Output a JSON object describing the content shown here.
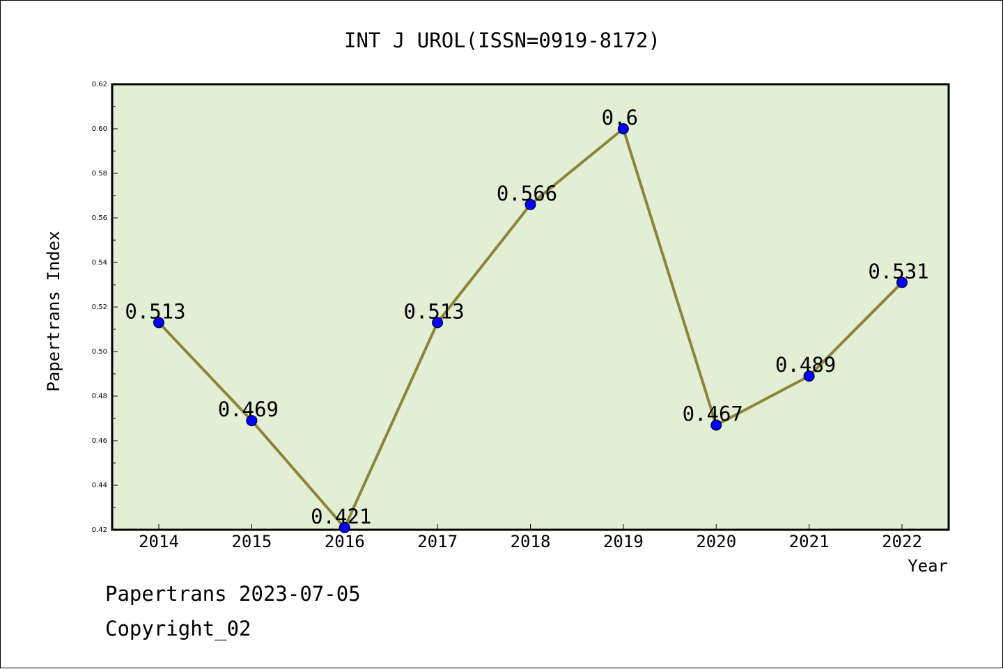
{
  "chart_data": {
    "type": "line",
    "title": "INT J UROL(ISSN=0919-8172)",
    "xlabel": "Year",
    "ylabel": "Papertrans Index",
    "categories": [
      "2014",
      "2015",
      "2016",
      "2017",
      "2018",
      "2019",
      "2020",
      "2021",
      "2022"
    ],
    "values": [
      0.513,
      0.469,
      0.421,
      0.513,
      0.566,
      0.6,
      0.467,
      0.489,
      0.531
    ],
    "data_labels": [
      "0.513",
      "0.469",
      "0.421",
      "0.513",
      "0.566",
      "0.6",
      "0.467",
      "0.489",
      "0.531"
    ],
    "ylim": [
      0.42,
      0.62
    ],
    "yticks": [
      "0.42",
      "0.44",
      "0.46",
      "0.48",
      "0.50",
      "0.52",
      "0.54",
      "0.56",
      "0.58",
      "0.60",
      "0.62"
    ],
    "grid": false,
    "colors": {
      "plot_background": "#e2efd4",
      "line": "#8c8438",
      "marker": "#0000ff"
    }
  },
  "footer": {
    "line1": "Papertrans 2023-07-05",
    "line2": "Copyright_02"
  }
}
